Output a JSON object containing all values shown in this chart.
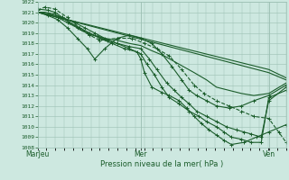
{
  "xlabel": "Pression niveau de la mer( hPa )",
  "bg_color": "#cde8e0",
  "grid_color": "#9bbfb3",
  "line_color": "#1a5c2a",
  "ylim": [
    1008,
    1022
  ],
  "yticks": [
    1008,
    1009,
    1010,
    1011,
    1012,
    1013,
    1014,
    1015,
    1016,
    1017,
    1018,
    1019,
    1020,
    1021,
    1022
  ],
  "xtick_labels": [
    "MarJeu",
    "Mer",
    "Ven"
  ],
  "xtick_pos": [
    0.0,
    0.415,
    0.93
  ],
  "lines": [
    {
      "x": [
        0.0,
        0.93,
        1.0
      ],
      "y": [
        1021.0,
        1015.2,
        1014.5
      ],
      "style": "-",
      "marker": null,
      "lw": 0.8
    },
    {
      "x": [
        0.0,
        0.93,
        1.0
      ],
      "y": [
        1021.0,
        1015.5,
        1014.7
      ],
      "style": "-",
      "marker": null,
      "lw": 0.8
    },
    {
      "x": [
        0.0,
        0.03,
        0.07,
        0.12,
        0.17,
        0.21,
        0.25,
        0.32,
        0.38,
        0.43,
        0.48,
        0.53,
        0.58,
        0.63,
        0.67,
        0.72,
        0.77,
        0.82,
        0.87,
        0.93,
        0.97,
        1.0
      ],
      "y": [
        1021.2,
        1021.5,
        1021.3,
        1020.5,
        1019.5,
        1018.8,
        1018.3,
        1018.5,
        1018.5,
        1018.0,
        1017.5,
        1016.8,
        1015.5,
        1014.0,
        1013.2,
        1012.5,
        1012.0,
        1011.5,
        1011.0,
        1010.8,
        1009.5,
        1008.5
      ],
      "style": "--",
      "marker": "+",
      "lw": 0.8
    },
    {
      "x": [
        0.0,
        0.03,
        0.07,
        0.11,
        0.15,
        0.18,
        0.22,
        0.27,
        0.32,
        0.37,
        0.415,
        0.46,
        0.51,
        0.57,
        0.63,
        0.68,
        0.72,
        0.77,
        0.82,
        0.87,
        0.93,
        1.0
      ],
      "y": [
        1021.0,
        1021.0,
        1020.8,
        1020.3,
        1019.7,
        1019.2,
        1018.8,
        1018.5,
        1018.3,
        1018.0,
        1017.8,
        1017.3,
        1016.8,
        1016.0,
        1015.2,
        1014.5,
        1013.8,
        1013.5,
        1013.2,
        1013.0,
        1013.2,
        1014.2
      ],
      "style": "-",
      "marker": null,
      "lw": 0.8
    },
    {
      "x": [
        0.0,
        0.04,
        0.08,
        0.12,
        0.16,
        0.2,
        0.23,
        0.27,
        0.32,
        0.37,
        0.415,
        0.46,
        0.5,
        0.54,
        0.58,
        0.61,
        0.64,
        0.68,
        0.72,
        0.77,
        0.82,
        0.87,
        0.93,
        1.0
      ],
      "y": [
        1021.0,
        1020.7,
        1020.3,
        1019.5,
        1018.5,
        1017.5,
        1016.5,
        1017.5,
        1018.5,
        1018.8,
        1018.5,
        1018.0,
        1017.0,
        1015.8,
        1014.5,
        1013.5,
        1013.0,
        1012.5,
        1012.0,
        1011.8,
        1012.0,
        1012.5,
        1013.0,
        1014.0
      ],
      "style": "-",
      "marker": "+",
      "lw": 0.8
    },
    {
      "x": [
        0.0,
        0.04,
        0.07,
        0.1,
        0.13,
        0.17,
        0.21,
        0.25,
        0.3,
        0.35,
        0.4,
        0.415,
        0.43,
        0.46,
        0.5,
        0.53,
        0.57,
        0.6,
        0.63,
        0.66,
        0.69,
        0.72,
        0.75,
        0.78,
        0.83,
        0.88,
        0.93,
        1.0
      ],
      "y": [
        1021.3,
        1021.2,
        1021.0,
        1020.5,
        1020.0,
        1019.5,
        1019.0,
        1018.5,
        1018.0,
        1017.5,
        1017.2,
        1016.5,
        1015.2,
        1013.8,
        1013.3,
        1013.0,
        1012.5,
        1011.8,
        1011.0,
        1010.3,
        1009.7,
        1009.2,
        1008.7,
        1008.3,
        1008.5,
        1009.0,
        1009.5,
        1010.2
      ],
      "style": "-",
      "marker": "+",
      "lw": 0.8
    },
    {
      "x": [
        0.0,
        0.04,
        0.08,
        0.12,
        0.16,
        0.2,
        0.24,
        0.28,
        0.32,
        0.37,
        0.415,
        0.45,
        0.48,
        0.52,
        0.55,
        0.58,
        0.61,
        0.64,
        0.68,
        0.72,
        0.76,
        0.8,
        0.83,
        0.86,
        0.9,
        0.93,
        1.0
      ],
      "y": [
        1021.0,
        1020.8,
        1020.5,
        1020.0,
        1019.5,
        1019.0,
        1018.7,
        1018.3,
        1018.0,
        1017.7,
        1017.5,
        1016.5,
        1015.5,
        1014.2,
        1013.5,
        1012.8,
        1012.2,
        1011.5,
        1011.0,
        1010.5,
        1010.0,
        1009.7,
        1009.5,
        1009.3,
        1009.0,
        1012.5,
        1013.8
      ],
      "style": "-",
      "marker": "+",
      "lw": 0.8
    },
    {
      "x": [
        0.0,
        0.05,
        0.1,
        0.15,
        0.19,
        0.23,
        0.27,
        0.32,
        0.37,
        0.415,
        0.44,
        0.47,
        0.5,
        0.53,
        0.57,
        0.61,
        0.65,
        0.68,
        0.72,
        0.75,
        0.78,
        0.82,
        0.86,
        0.9,
        0.93,
        1.0
      ],
      "y": [
        1021.0,
        1020.8,
        1020.5,
        1020.0,
        1019.5,
        1019.0,
        1018.5,
        1018.0,
        1017.5,
        1017.0,
        1016.0,
        1015.0,
        1013.8,
        1012.8,
        1012.2,
        1011.5,
        1011.0,
        1010.5,
        1010.0,
        1009.5,
        1009.0,
        1008.8,
        1008.5,
        1008.5,
        1012.8,
        1013.5
      ],
      "style": "-",
      "marker": "+",
      "lw": 0.8
    }
  ]
}
